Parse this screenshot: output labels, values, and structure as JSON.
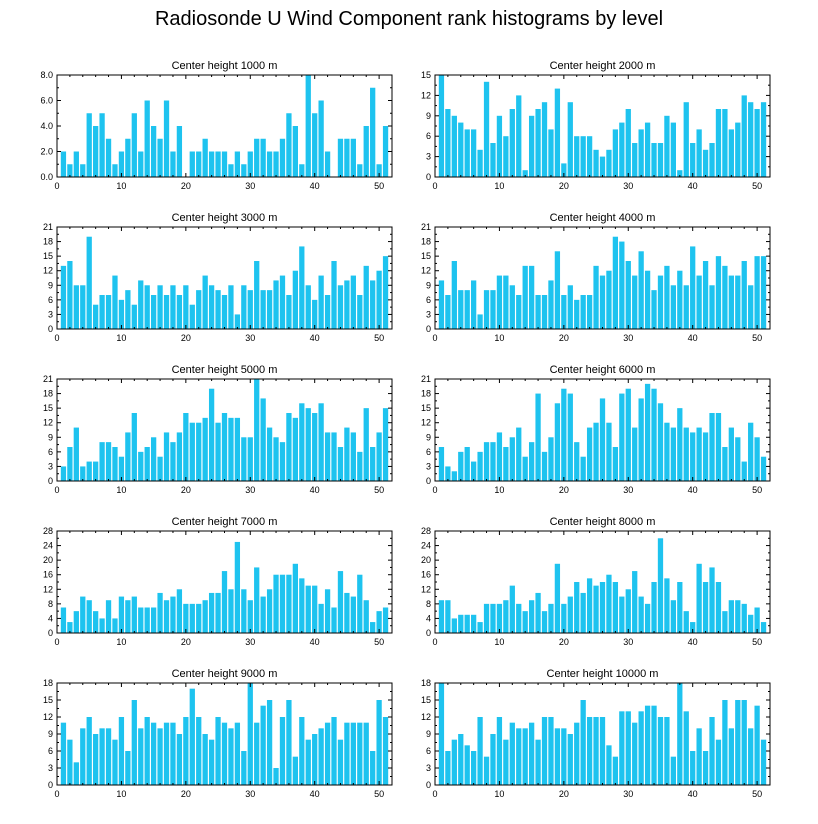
{
  "title": "Radiosonde U Wind Component rank histograms by level",
  "bar_color": "#1ec3ef",
  "chart_data": [
    {
      "type": "bar",
      "title": "Center height 1000 m",
      "ylim": [
        0,
        8.0
      ],
      "yticks": [
        "0.0",
        "2.0",
        "4.0",
        "6.0",
        "8.0"
      ],
      "xlim": [
        0,
        52
      ],
      "xticks": [
        "0",
        "10",
        "20",
        "30",
        "40",
        "50"
      ],
      "x": [
        1,
        2,
        3,
        4,
        5,
        6,
        7,
        8,
        9,
        10,
        11,
        12,
        13,
        14,
        15,
        16,
        17,
        18,
        19,
        20,
        21,
        22,
        23,
        24,
        25,
        26,
        27,
        28,
        29,
        30,
        31,
        32,
        33,
        34,
        35,
        36,
        37,
        38,
        39,
        40,
        41,
        42,
        43,
        44,
        45,
        46,
        47,
        48,
        49,
        50,
        51
      ],
      "values": [
        2,
        1,
        2,
        1,
        5,
        4,
        5,
        3,
        1,
        2,
        3,
        5,
        2,
        6,
        4,
        3,
        6,
        2,
        4,
        0,
        2,
        2,
        3,
        2,
        2,
        2,
        1,
        2,
        1,
        2,
        3,
        3,
        2,
        2,
        3,
        5,
        4,
        1,
        8,
        5,
        6,
        2,
        0,
        3,
        3,
        3,
        1,
        4,
        7,
        1,
        4
      ]
    },
    {
      "type": "bar",
      "title": "Center height 2000 m",
      "ylim": [
        0,
        15
      ],
      "yticks": [
        "0",
        "3",
        "6",
        "9",
        "12",
        "15"
      ],
      "xlim": [
        0,
        52
      ],
      "xticks": [
        "0",
        "10",
        "20",
        "30",
        "40",
        "50"
      ],
      "x": [
        1,
        2,
        3,
        4,
        5,
        6,
        7,
        8,
        9,
        10,
        11,
        12,
        13,
        14,
        15,
        16,
        17,
        18,
        19,
        20,
        21,
        22,
        23,
        24,
        25,
        26,
        27,
        28,
        29,
        30,
        31,
        32,
        33,
        34,
        35,
        36,
        37,
        38,
        39,
        40,
        41,
        42,
        43,
        44,
        45,
        46,
        47,
        48,
        49,
        50,
        51
      ],
      "values": [
        15,
        10,
        9,
        8,
        7,
        7,
        4,
        14,
        5,
        9,
        6,
        10,
        12,
        1,
        9,
        10,
        11,
        7,
        13,
        2,
        11,
        6,
        6,
        6,
        4,
        3,
        4,
        7,
        8,
        10,
        5,
        7,
        8,
        5,
        5,
        9,
        8,
        1,
        11,
        5,
        7,
        4,
        5,
        10,
        10,
        7,
        8,
        12,
        11,
        10,
        11
      ]
    },
    {
      "type": "bar",
      "title": "Center height 3000 m",
      "ylim": [
        0,
        21
      ],
      "yticks": [
        "0",
        "3",
        "6",
        "9",
        "12",
        "15",
        "18",
        "21"
      ],
      "xlim": [
        0,
        52
      ],
      "xticks": [
        "0",
        "10",
        "20",
        "30",
        "40",
        "50"
      ],
      "x": [
        1,
        2,
        3,
        4,
        5,
        6,
        7,
        8,
        9,
        10,
        11,
        12,
        13,
        14,
        15,
        16,
        17,
        18,
        19,
        20,
        21,
        22,
        23,
        24,
        25,
        26,
        27,
        28,
        29,
        30,
        31,
        32,
        33,
        34,
        35,
        36,
        37,
        38,
        39,
        40,
        41,
        42,
        43,
        44,
        45,
        46,
        47,
        48,
        49,
        50,
        51
      ],
      "values": [
        13,
        14,
        9,
        9,
        19,
        5,
        7,
        7,
        11,
        6,
        8,
        5,
        10,
        9,
        7,
        9,
        7,
        9,
        7,
        9,
        5,
        8,
        11,
        9,
        8,
        7,
        9,
        3,
        9,
        8,
        14,
        8,
        8,
        10,
        11,
        7,
        12,
        17,
        9,
        6,
        11,
        7,
        14,
        9,
        10,
        11,
        7,
        13,
        10,
        12,
        15
      ]
    },
    {
      "type": "bar",
      "title": "Center height 4000 m",
      "ylim": [
        0,
        21
      ],
      "yticks": [
        "0",
        "3",
        "6",
        "9",
        "12",
        "15",
        "18",
        "21"
      ],
      "xlim": [
        0,
        52
      ],
      "xticks": [
        "0",
        "10",
        "20",
        "30",
        "40",
        "50"
      ],
      "x": [
        1,
        2,
        3,
        4,
        5,
        6,
        7,
        8,
        9,
        10,
        11,
        12,
        13,
        14,
        15,
        16,
        17,
        18,
        19,
        20,
        21,
        22,
        23,
        24,
        25,
        26,
        27,
        28,
        29,
        30,
        31,
        32,
        33,
        34,
        35,
        36,
        37,
        38,
        39,
        40,
        41,
        42,
        43,
        44,
        45,
        46,
        47,
        48,
        49,
        50,
        51
      ],
      "values": [
        10,
        7,
        14,
        8,
        8,
        10,
        3,
        8,
        8,
        11,
        11,
        9,
        7,
        13,
        13,
        7,
        7,
        10,
        16,
        7,
        9,
        6,
        7,
        7,
        13,
        11,
        12,
        19,
        18,
        14,
        11,
        16,
        12,
        8,
        11,
        13,
        9,
        12,
        9,
        17,
        11,
        14,
        9,
        15,
        13,
        11,
        11,
        14,
        9,
        15,
        15
      ]
    },
    {
      "type": "bar",
      "title": "Center height 5000 m",
      "ylim": [
        0,
        21
      ],
      "yticks": [
        "0",
        "3",
        "6",
        "9",
        "12",
        "15",
        "18",
        "21"
      ],
      "xlim": [
        0,
        52
      ],
      "xticks": [
        "0",
        "10",
        "20",
        "30",
        "40",
        "50"
      ],
      "x": [
        1,
        2,
        3,
        4,
        5,
        6,
        7,
        8,
        9,
        10,
        11,
        12,
        13,
        14,
        15,
        16,
        17,
        18,
        19,
        20,
        21,
        22,
        23,
        24,
        25,
        26,
        27,
        28,
        29,
        30,
        31,
        32,
        33,
        34,
        35,
        36,
        37,
        38,
        39,
        40,
        41,
        42,
        43,
        44,
        45,
        46,
        47,
        48,
        49,
        50,
        51
      ],
      "values": [
        3,
        7,
        11,
        3,
        4,
        4,
        8,
        8,
        7,
        5,
        10,
        14,
        6,
        7,
        9,
        5,
        10,
        8,
        10,
        14,
        12,
        12,
        13,
        19,
        12,
        14,
        13,
        13,
        9,
        9,
        21,
        17,
        11,
        9,
        8,
        14,
        13,
        16,
        15,
        14,
        16,
        10,
        10,
        7,
        11,
        10,
        6,
        15,
        7,
        10,
        15
      ]
    },
    {
      "type": "bar",
      "title": "Center height 6000 m",
      "ylim": [
        0,
        21
      ],
      "yticks": [
        "0",
        "3",
        "6",
        "9",
        "12",
        "15",
        "18",
        "21"
      ],
      "xlim": [
        0,
        52
      ],
      "xticks": [
        "0",
        "10",
        "20",
        "30",
        "40",
        "50"
      ],
      "x": [
        1,
        2,
        3,
        4,
        5,
        6,
        7,
        8,
        9,
        10,
        11,
        12,
        13,
        14,
        15,
        16,
        17,
        18,
        19,
        20,
        21,
        22,
        23,
        24,
        25,
        26,
        27,
        28,
        29,
        30,
        31,
        32,
        33,
        34,
        35,
        36,
        37,
        38,
        39,
        40,
        41,
        42,
        43,
        44,
        45,
        46,
        47,
        48,
        49,
        50,
        51
      ],
      "values": [
        7,
        3,
        2,
        6,
        7,
        4,
        6,
        8,
        8,
        10,
        7,
        9,
        11,
        5,
        8,
        18,
        6,
        9,
        16,
        19,
        18,
        8,
        5,
        11,
        12,
        17,
        12,
        7,
        18,
        19,
        11,
        17,
        20,
        19,
        16,
        12,
        11,
        15,
        11,
        10,
        11,
        10,
        14,
        14,
        7,
        11,
        9,
        4,
        12,
        9,
        5
      ]
    },
    {
      "type": "bar",
      "title": "Center height 7000 m",
      "ylim": [
        0,
        28
      ],
      "yticks": [
        "0",
        "4",
        "8",
        "12",
        "16",
        "20",
        "24",
        "28"
      ],
      "xlim": [
        0,
        52
      ],
      "xticks": [
        "0",
        "10",
        "20",
        "30",
        "40",
        "50"
      ],
      "x": [
        1,
        2,
        3,
        4,
        5,
        6,
        7,
        8,
        9,
        10,
        11,
        12,
        13,
        14,
        15,
        16,
        17,
        18,
        19,
        20,
        21,
        22,
        23,
        24,
        25,
        26,
        27,
        28,
        29,
        30,
        31,
        32,
        33,
        34,
        35,
        36,
        37,
        38,
        39,
        40,
        41,
        42,
        43,
        44,
        45,
        46,
        47,
        48,
        49,
        50,
        51
      ],
      "values": [
        7,
        3,
        6,
        10,
        9,
        6,
        4,
        9,
        4,
        10,
        9,
        10,
        7,
        7,
        7,
        11,
        9,
        10,
        12,
        8,
        8,
        8,
        9,
        11,
        11,
        17,
        12,
        25,
        12,
        9,
        18,
        10,
        12,
        16,
        16,
        16,
        19,
        15,
        13,
        13,
        8,
        12,
        7,
        17,
        11,
        10,
        16,
        9,
        3,
        6,
        7
      ]
    },
    {
      "type": "bar",
      "title": "Center height 8000 m",
      "ylim": [
        0,
        28
      ],
      "yticks": [
        "0",
        "4",
        "8",
        "12",
        "16",
        "20",
        "24",
        "28"
      ],
      "xlim": [
        0,
        52
      ],
      "xticks": [
        "0",
        "10",
        "20",
        "30",
        "40",
        "50"
      ],
      "x": [
        1,
        2,
        3,
        4,
        5,
        6,
        7,
        8,
        9,
        10,
        11,
        12,
        13,
        14,
        15,
        16,
        17,
        18,
        19,
        20,
        21,
        22,
        23,
        24,
        25,
        26,
        27,
        28,
        29,
        30,
        31,
        32,
        33,
        34,
        35,
        36,
        37,
        38,
        39,
        40,
        41,
        42,
        43,
        44,
        45,
        46,
        47,
        48,
        49,
        50,
        51
      ],
      "values": [
        9,
        9,
        4,
        5,
        5,
        5,
        3,
        8,
        8,
        8,
        9,
        13,
        8,
        6,
        9,
        11,
        6,
        8,
        19,
        8,
        10,
        14,
        11,
        15,
        13,
        14,
        16,
        14,
        10,
        12,
        17,
        10,
        8,
        14,
        26,
        15,
        9,
        14,
        6,
        3,
        19,
        14,
        18,
        14,
        6,
        9,
        9,
        8,
        5,
        7,
        3
      ]
    },
    {
      "type": "bar",
      "title": "Center height 9000 m",
      "ylim": [
        0,
        18
      ],
      "yticks": [
        "0",
        "3",
        "6",
        "9",
        "12",
        "15",
        "18"
      ],
      "xlim": [
        0,
        52
      ],
      "xticks": [
        "0",
        "10",
        "20",
        "30",
        "40",
        "50"
      ],
      "x": [
        1,
        2,
        3,
        4,
        5,
        6,
        7,
        8,
        9,
        10,
        11,
        12,
        13,
        14,
        15,
        16,
        17,
        18,
        19,
        20,
        21,
        22,
        23,
        24,
        25,
        26,
        27,
        28,
        29,
        30,
        31,
        32,
        33,
        34,
        35,
        36,
        37,
        38,
        39,
        40,
        41,
        42,
        43,
        44,
        45,
        46,
        47,
        48,
        49,
        50,
        51
      ],
      "values": [
        11,
        8,
        4,
        10,
        12,
        9,
        10,
        10,
        8,
        12,
        6,
        15,
        10,
        12,
        11,
        10,
        11,
        11,
        9,
        12,
        17,
        12,
        9,
        8,
        12,
        11,
        10,
        11,
        6,
        18,
        11,
        14,
        15,
        3,
        12,
        15,
        5,
        12,
        8,
        9,
        10,
        11,
        12,
        8,
        11,
        11,
        11,
        11,
        6,
        15,
        12
      ]
    },
    {
      "type": "bar",
      "title": "Center height 10000 m",
      "ylim": [
        0,
        18
      ],
      "yticks": [
        "0",
        "3",
        "6",
        "9",
        "12",
        "15",
        "18"
      ],
      "xlim": [
        0,
        52
      ],
      "xticks": [
        "0",
        "10",
        "20",
        "30",
        "40",
        "50"
      ],
      "x": [
        1,
        2,
        3,
        4,
        5,
        6,
        7,
        8,
        9,
        10,
        11,
        12,
        13,
        14,
        15,
        16,
        17,
        18,
        19,
        20,
        21,
        22,
        23,
        24,
        25,
        26,
        27,
        28,
        29,
        30,
        31,
        32,
        33,
        34,
        35,
        36,
        37,
        38,
        39,
        40,
        41,
        42,
        43,
        44,
        45,
        46,
        47,
        48,
        49,
        50,
        51
      ],
      "values": [
        18,
        6,
        8,
        9,
        7,
        6,
        12,
        5,
        9,
        12,
        8,
        11,
        10,
        10,
        11,
        8,
        12,
        12,
        10,
        10,
        9,
        11,
        15,
        12,
        12,
        12,
        7,
        5,
        13,
        13,
        11,
        13,
        14,
        14,
        12,
        12,
        5,
        18,
        13,
        6,
        10,
        6,
        12,
        8,
        15,
        10,
        15,
        15,
        10,
        14,
        8
      ]
    }
  ]
}
